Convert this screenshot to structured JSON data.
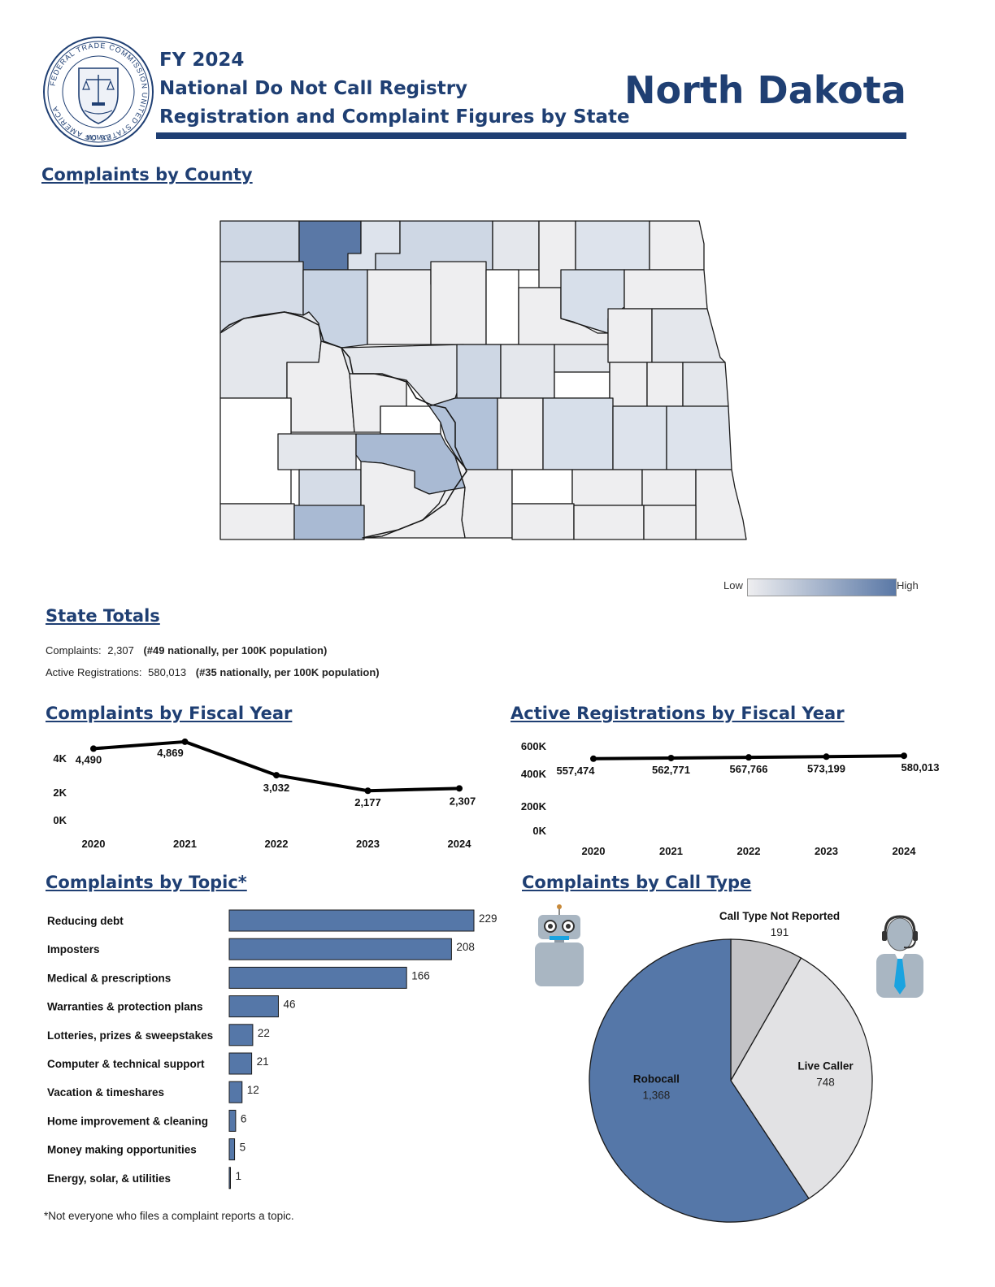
{
  "header": {
    "fiscal_year": "FY 2024",
    "registry": "National Do Not Call Registry",
    "subtitle": "Registration and Complaint Figures by State",
    "state": "North Dakota",
    "seal_text": "FEDERAL TRADE COMMISSION UNITED STATES OF AMERICA",
    "seal_year": "MCMXV"
  },
  "colors": {
    "navy": "#1f3f73",
    "bar": "#5577a8",
    "pie_robocall": "#5577a8",
    "pie_live": "#e2e2e4",
    "pie_unreported": "#c3c3c6",
    "map_low": "#eeeef0",
    "map_high": "#5a78a6"
  },
  "map": {
    "title": "Complaints by County",
    "legend_low": "Low",
    "legend_high": "High"
  },
  "totals": {
    "title": "State Totals",
    "complaints_label": "Complaints:",
    "complaints_value": "2,307",
    "complaints_rank": "(#49 nationally, per 100K population)",
    "registrations_label": "Active Registrations:",
    "registrations_value": "580,013",
    "registrations_rank": "(#35 nationally, per 100K population)"
  },
  "footnote": "*Not everyone who files a complaint reports a topic.",
  "chart_data": [
    {
      "type": "line",
      "title": "Complaints by Fiscal Year",
      "x": [
        "2020",
        "2021",
        "2022",
        "2023",
        "2024"
      ],
      "values": [
        4490,
        4869,
        3032,
        2177,
        2307
      ],
      "labels": [
        "4,490",
        "4,869",
        "3,032",
        "2,177",
        "2,307"
      ],
      "yticks": [
        "0K",
        "2K",
        "4K"
      ],
      "ylim": [
        0,
        5000
      ]
    },
    {
      "type": "line",
      "title": "Active Registrations by Fiscal Year",
      "x": [
        "2020",
        "2021",
        "2022",
        "2023",
        "2024"
      ],
      "values": [
        557474,
        562771,
        567766,
        573199,
        580013
      ],
      "labels": [
        "557,474",
        "562,771",
        "567,766",
        "573,199",
        "580,013"
      ],
      "yticks": [
        "0K",
        "200K",
        "400K",
        "600K"
      ],
      "ylim": [
        0,
        600000
      ]
    },
    {
      "type": "bar",
      "title": "Complaints by Topic*",
      "categories": [
        "Reducing debt",
        "Imposters",
        "Medical & prescriptions",
        "Warranties & protection plans",
        "Lotteries, prizes & sweepstakes",
        "Computer & technical support",
        "Vacation & timeshares",
        "Home improvement & cleaning",
        "Money making opportunities",
        "Energy, solar, & utilities"
      ],
      "values": [
        229,
        208,
        166,
        46,
        22,
        21,
        12,
        6,
        5,
        1
      ]
    },
    {
      "type": "pie",
      "title": "Complaints by Call Type",
      "slices": [
        {
          "name": "Call Type Not Reported",
          "value": 191,
          "label": "191"
        },
        {
          "name": "Live Caller",
          "value": 748,
          "label": "748"
        },
        {
          "name": "Robocall",
          "value": 1368,
          "label": "1,368"
        }
      ]
    }
  ]
}
